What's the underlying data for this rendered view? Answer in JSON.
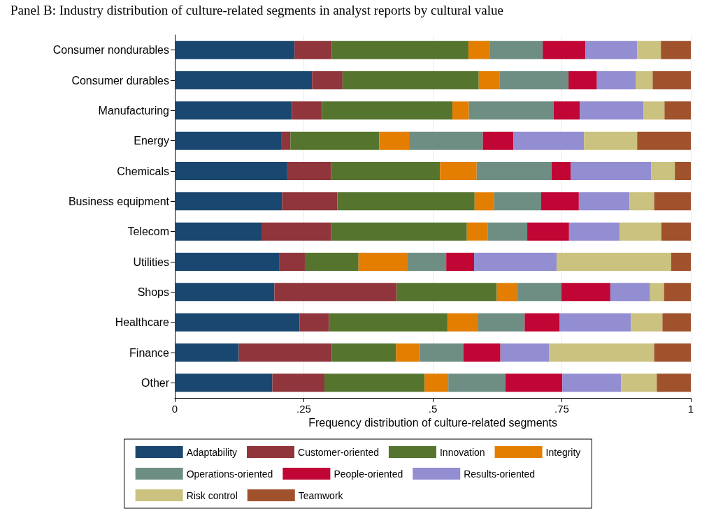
{
  "chart_data": {
    "type": "bar",
    "orientation": "horizontal",
    "stacked": true,
    "title": "Panel B: Industry distribution of culture-related segments in analyst reports by cultural value",
    "xlabel": "Frequency distribution of culture-related segments",
    "categories": [
      "Consumer nondurables",
      "Consumer durables",
      "Manufacturing",
      "Energy",
      "Chemicals",
      "Business equipment",
      "Telecom",
      "Utilities",
      "Shops",
      "Healthcare",
      "Finance",
      "Other"
    ],
    "series": [
      {
        "name": "Adaptability",
        "color": "#1a476f",
        "values": [
          0.232,
          0.266,
          0.227,
          0.206,
          0.218,
          0.208,
          0.168,
          0.202,
          0.193,
          0.242,
          0.124,
          0.189
        ]
      },
      {
        "name": "Customer-oriented",
        "color": "#90353b",
        "values": [
          0.072,
          0.059,
          0.058,
          0.018,
          0.085,
          0.107,
          0.135,
          0.05,
          0.237,
          0.057,
          0.18,
          0.101
        ]
      },
      {
        "name": "Innovation",
        "color": "#55752f",
        "values": [
          0.265,
          0.264,
          0.253,
          0.172,
          0.211,
          0.266,
          0.263,
          0.104,
          0.194,
          0.23,
          0.125,
          0.194
        ]
      },
      {
        "name": "Integrity",
        "color": "#e37e00",
        "values": [
          0.041,
          0.04,
          0.032,
          0.058,
          0.071,
          0.038,
          0.04,
          0.094,
          0.039,
          0.059,
          0.046,
          0.046
        ]
      },
      {
        "name": "Operations-oriented",
        "color": "#6e8e84",
        "values": [
          0.103,
          0.134,
          0.164,
          0.143,
          0.145,
          0.091,
          0.077,
          0.076,
          0.086,
          0.09,
          0.084,
          0.111
        ]
      },
      {
        "name": "People-oriented",
        "color": "#c10534",
        "values": [
          0.083,
          0.055,
          0.051,
          0.059,
          0.037,
          0.073,
          0.081,
          0.054,
          0.095,
          0.068,
          0.072,
          0.11
        ]
      },
      {
        "name": "Results-oriented",
        "color": "#938dd2",
        "values": [
          0.1,
          0.075,
          0.123,
          0.137,
          0.156,
          0.098,
          0.098,
          0.16,
          0.077,
          0.138,
          0.094,
          0.114
        ]
      },
      {
        "name": "Risk control",
        "color": "#cac27e",
        "values": [
          0.046,
          0.033,
          0.041,
          0.103,
          0.046,
          0.048,
          0.081,
          0.222,
          0.027,
          0.061,
          0.204,
          0.069
        ]
      },
      {
        "name": "Teamwork",
        "color": "#a0522d",
        "values": [
          0.058,
          0.074,
          0.051,
          0.104,
          0.031,
          0.071,
          0.057,
          0.038,
          0.052,
          0.055,
          0.071,
          0.066
        ]
      }
    ],
    "xlim": [
      0,
      1
    ],
    "xticks": [
      0,
      {
        "value": 0.25,
        "label": ".25"
      },
      {
        "value": 0.5,
        "label": ".5"
      },
      {
        "value": 0.75,
        "label": ".75"
      },
      1
    ],
    "grid": "x",
    "legend": "bottom"
  }
}
